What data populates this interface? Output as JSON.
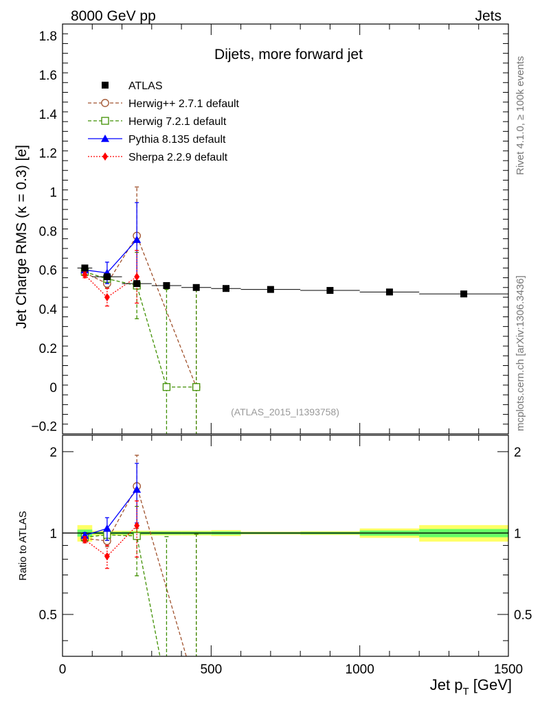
{
  "header": {
    "left": "8000 GeV pp",
    "right": "Jets"
  },
  "side": {
    "rivet": "Rivet 4.1.0, ≥ 100k events",
    "mcplots": "mcplots.cern.ch [arXiv:1306.3436]"
  },
  "colors": {
    "atlas": "#000000",
    "herwigpp": "#a0522d",
    "herwig7": "#3f8f00",
    "pythia": "#0000ff",
    "sherpa": "#ff0000",
    "band_inner": "#66ff66",
    "band_outer": "#ffff66"
  },
  "chart_data": [
    {
      "type": "scatter",
      "panel": "main",
      "title": "Dijets, more forward jet",
      "watermark": "(ATLAS_2015_I1393758)",
      "xlabel": "",
      "ylabel": "Jet Charge RMS (κ = 0.3) [e]",
      "xlim": [
        0,
        1500
      ],
      "ylim": [
        -0.24,
        1.86
      ],
      "yticks": [
        -0.2,
        0,
        0.2,
        0.4,
        0.6,
        0.8,
        1,
        1.2,
        1.4,
        1.6,
        1.8
      ],
      "ytick_labels": [
        "−0.2",
        "0",
        "0.2",
        "0.4",
        "0.6",
        "0.8",
        "1",
        "1.2",
        "1.4",
        "1.6",
        "1.8"
      ],
      "legend_position": "top-left",
      "series": [
        {
          "name": "ATLAS",
          "color": "#000000",
          "style": "square-filled",
          "x": [
            75,
            150,
            250,
            350,
            450,
            550,
            700,
            900,
            1100,
            1350
          ],
          "xerr": [
            25,
            50,
            50,
            50,
            50,
            50,
            100,
            100,
            100,
            150
          ],
          "values": [
            0.61,
            0.565,
            0.53,
            0.52,
            0.51,
            0.505,
            0.5,
            0.495,
            0.487,
            0.477
          ],
          "yerr": [
            0.01,
            0.01,
            0.01,
            0.01,
            0.01,
            0.01,
            0.01,
            0.01,
            0.01,
            0.01
          ]
        },
        {
          "name": "Herwig++ 2.7.1 default",
          "color": "#a0522d",
          "style": "circle-open",
          "x": [
            75,
            150,
            250,
            450
          ],
          "values": [
            0.585,
            0.53,
            0.775,
            0.0
          ],
          "yerr": [
            0.015,
            0.02,
            0.25,
            0.5
          ]
        },
        {
          "name": "Herwig 7.2.1 default",
          "color": "#3f8f00",
          "style": "square-open",
          "x": [
            75,
            150,
            250,
            350,
            450
          ],
          "values": [
            0.59,
            0.555,
            0.52,
            0.0,
            0.0
          ],
          "yerr": [
            0.015,
            0.02,
            0.17,
            0.5,
            0.5
          ]
        },
        {
          "name": "Pythia 8.135 default",
          "color": "#0000ff",
          "style": "triangle-filled",
          "x": [
            75,
            150,
            250
          ],
          "values": [
            0.6,
            0.585,
            0.755
          ],
          "yerr": [
            0.015,
            0.055,
            0.19
          ]
        },
        {
          "name": "Sherpa 2.2.9 default",
          "color": "#ff0000",
          "style": "diamond-filled",
          "x": [
            75,
            150,
            250
          ],
          "values": [
            0.575,
            0.46,
            0.565
          ],
          "yerr": [
            0.015,
            0.045,
            0.135
          ]
        }
      ]
    },
    {
      "type": "scatter",
      "panel": "ratio",
      "xlabel": "Jet p_T [GeV]",
      "ylabel": "Ratio to ATLAS",
      "xlim": [
        0,
        1500
      ],
      "ylim": [
        0.35,
        2.3
      ],
      "scale": "log",
      "xticks": [
        0,
        500,
        1000,
        1500
      ],
      "xtick_labels": [
        "0",
        "500",
        "1000",
        "1500"
      ],
      "yticks": [
        0.5,
        1,
        2
      ],
      "ytick_labels": [
        "0.5",
        "1",
        "2"
      ],
      "band": {
        "x_edges": [
          [
            50,
            100
          ],
          [
            100,
            200
          ],
          [
            200,
            300
          ],
          [
            300,
            400
          ],
          [
            400,
            500
          ],
          [
            500,
            600
          ],
          [
            600,
            800
          ],
          [
            800,
            1000
          ],
          [
            1000,
            1200
          ],
          [
            1200,
            1500
          ]
        ],
        "inner": [
          0.03,
          0.01,
          0.012,
          0.012,
          0.012,
          0.014,
          0.008,
          0.01,
          0.022,
          0.035
        ],
        "outer": [
          0.07,
          0.02,
          0.02,
          0.02,
          0.02,
          0.025,
          0.012,
          0.016,
          0.04,
          0.07
        ]
      },
      "series": [
        {
          "name": "Herwig++ 2.7.1 default",
          "color": "#a0522d",
          "style": "circle-open",
          "x": [
            75,
            150,
            250,
            450
          ],
          "values": [
            0.955,
            0.935,
            1.49,
            0.0
          ],
          "yerr": [
            0.025,
            0.045,
            0.45,
            0.99
          ]
        },
        {
          "name": "Herwig 7.2.1 default",
          "color": "#3f8f00",
          "style": "square-open",
          "x": [
            75,
            150,
            250,
            350,
            450
          ],
          "values": [
            0.965,
            0.985,
            0.975,
            0.0,
            0.0
          ],
          "yerr": [
            0.025,
            0.045,
            0.28,
            0.97,
            0.99
          ]
        },
        {
          "name": "Pythia 8.135 default",
          "color": "#0000ff",
          "style": "triangle-filled",
          "x": [
            75,
            150,
            250
          ],
          "values": [
            0.98,
            1.04,
            1.45
          ],
          "yerr": [
            0.025,
            0.1,
            0.36
          ]
        },
        {
          "name": "Sherpa 2.2.9 default",
          "color": "#ff0000",
          "style": "diamond-filled",
          "x": [
            75,
            150,
            250
          ],
          "values": [
            0.945,
            0.82,
            1.065
          ],
          "yerr": [
            0.025,
            0.08,
            0.25
          ]
        }
      ]
    }
  ]
}
